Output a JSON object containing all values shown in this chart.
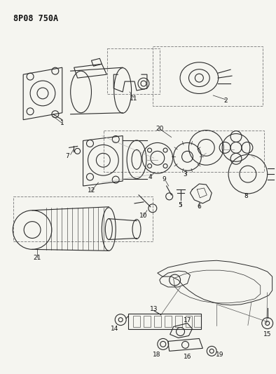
{
  "title": "8P08 750A",
  "background_color": "#f5f5f0",
  "line_color": "#2a2a2a",
  "fig_width": 3.94,
  "fig_height": 5.33,
  "dpi": 100,
  "label_fontsize": 6.5,
  "title_fontsize": 8.5
}
